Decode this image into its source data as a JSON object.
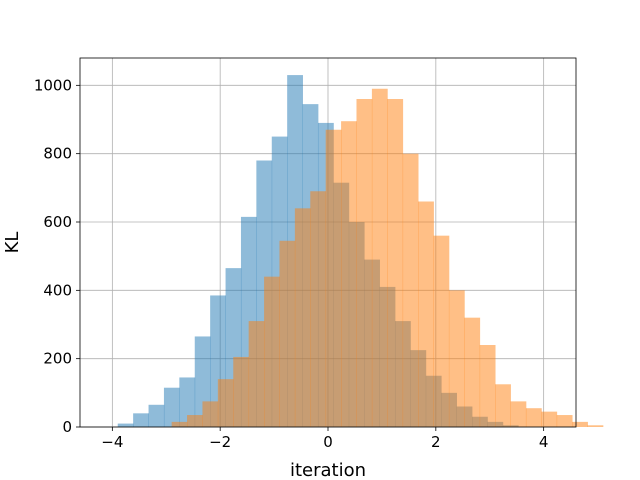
{
  "chart_data": {
    "type": "bar",
    "subtype": "overlapping-histogram",
    "title": "",
    "xlabel": "iteration",
    "ylabel": "KL",
    "xlim": [
      -4.6,
      4.6
    ],
    "ylim": [
      0,
      1080
    ],
    "xticks": [
      -4,
      -2,
      0,
      2,
      4
    ],
    "xtick_labels": [
      "−4",
      "−2",
      "0",
      "2",
      "4"
    ],
    "yticks": [
      0,
      200,
      400,
      600,
      800,
      1000
    ],
    "ytick_labels": [
      "0",
      "200",
      "400",
      "600",
      "800",
      "1000"
    ],
    "grid": true,
    "legend": "none",
    "series": [
      {
        "color": "#1f77b4",
        "opacity": 0.5,
        "bin_start": -3.9,
        "bin_width": 0.2857,
        "values": [
          10,
          40,
          65,
          115,
          145,
          265,
          385,
          465,
          615,
          780,
          850,
          1030,
          945,
          890,
          715,
          600,
          490,
          410,
          310,
          225,
          150,
          100,
          60,
          30,
          15,
          5,
          0,
          0,
          0,
          0
        ]
      },
      {
        "color": "#ff7f0e",
        "opacity": 0.5,
        "bin_start": -2.9,
        "bin_width": 0.2857,
        "values": [
          15,
          35,
          75,
          140,
          205,
          310,
          440,
          545,
          640,
          690,
          870,
          895,
          960,
          990,
          960,
          800,
          660,
          560,
          400,
          320,
          240,
          125,
          75,
          55,
          45,
          35,
          15,
          5,
          0,
          0
        ]
      }
    ]
  }
}
